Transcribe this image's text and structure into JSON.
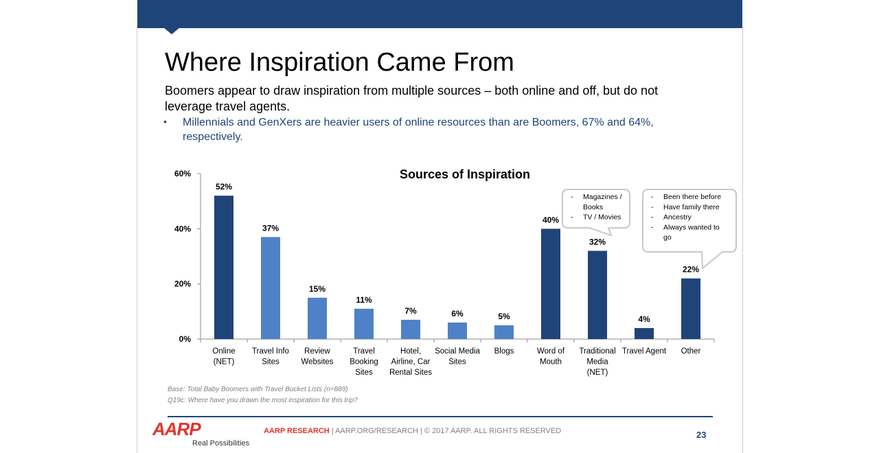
{
  "slide": {
    "title": "Where Inspiration Came From",
    "subtitle": "Boomers appear to draw inspiration from multiple sources – both online and off, but do not leverage travel agents.",
    "bullet": {
      "mark": "•",
      "text": "Millennials and GenXers are heavier users of online resources than are Boomers, 67% and 64%, respectively."
    },
    "base_note": "Base: Total Baby Boomers with Travel Bucket Lists (n=889)",
    "question_note": "Q19c: Where have you drawn the most inspiration for this trip?",
    "colors": {
      "band": "#1f4479",
      "bullet": "#1f4479",
      "dark_bar": "#1f4479",
      "light_bar": "#4f81c7",
      "aarp_red": "#e4322b"
    }
  },
  "footer": {
    "brand": "AARP RESEARCH",
    "rest": " | AARP.ORG/RESEARCH | © 2017 AARP. ALL RIGHTS RESERVED",
    "page_number": "23",
    "logo_word": "AARP",
    "logo_tagline": "Real Possibilities"
  },
  "chart_data": {
    "type": "bar",
    "title": "Sources of Inspiration",
    "xlabel": "",
    "ylabel": "",
    "ylim": [
      0,
      60
    ],
    "yticks": [
      0,
      20,
      40,
      60
    ],
    "ytick_labels": [
      "0%",
      "20%",
      "40%",
      "60%"
    ],
    "grid": false,
    "categories": [
      [
        "Online",
        "(NET)"
      ],
      [
        "Travel Info",
        "Sites"
      ],
      [
        "Review",
        "Websites"
      ],
      [
        "Travel",
        "Booking",
        "Sites"
      ],
      [
        "Hotel,",
        "Airline, Car",
        "Rental Sites"
      ],
      [
        "Social Media",
        "Sites"
      ],
      [
        "Blogs"
      ],
      [
        "Word of",
        "Mouth"
      ],
      [
        "Traditional",
        "Media",
        "(NET)"
      ],
      [
        "Travel Agent"
      ],
      [
        "Other"
      ]
    ],
    "values": [
      52,
      37,
      15,
      11,
      7,
      6,
      5,
      40,
      32,
      4,
      22
    ],
    "value_labels": [
      "52%",
      "37%",
      "15%",
      "11%",
      "7%",
      "6%",
      "5%",
      "40%",
      "32%",
      "4%",
      "22%"
    ],
    "bar_tone": [
      "dark",
      "light",
      "light",
      "light",
      "light",
      "light",
      "light",
      "dark",
      "dark",
      "dark",
      "dark"
    ],
    "callouts": [
      {
        "attached_to": "Traditional Media (NET)",
        "items": [
          [
            "Magazines /",
            "Books"
          ],
          [
            "TV / Movies"
          ]
        ]
      },
      {
        "attached_to": "Other",
        "items": [
          [
            "Been there before"
          ],
          [
            "Have family there"
          ],
          [
            "Ancestry"
          ],
          [
            "Always wanted to",
            "go"
          ]
        ]
      }
    ]
  }
}
